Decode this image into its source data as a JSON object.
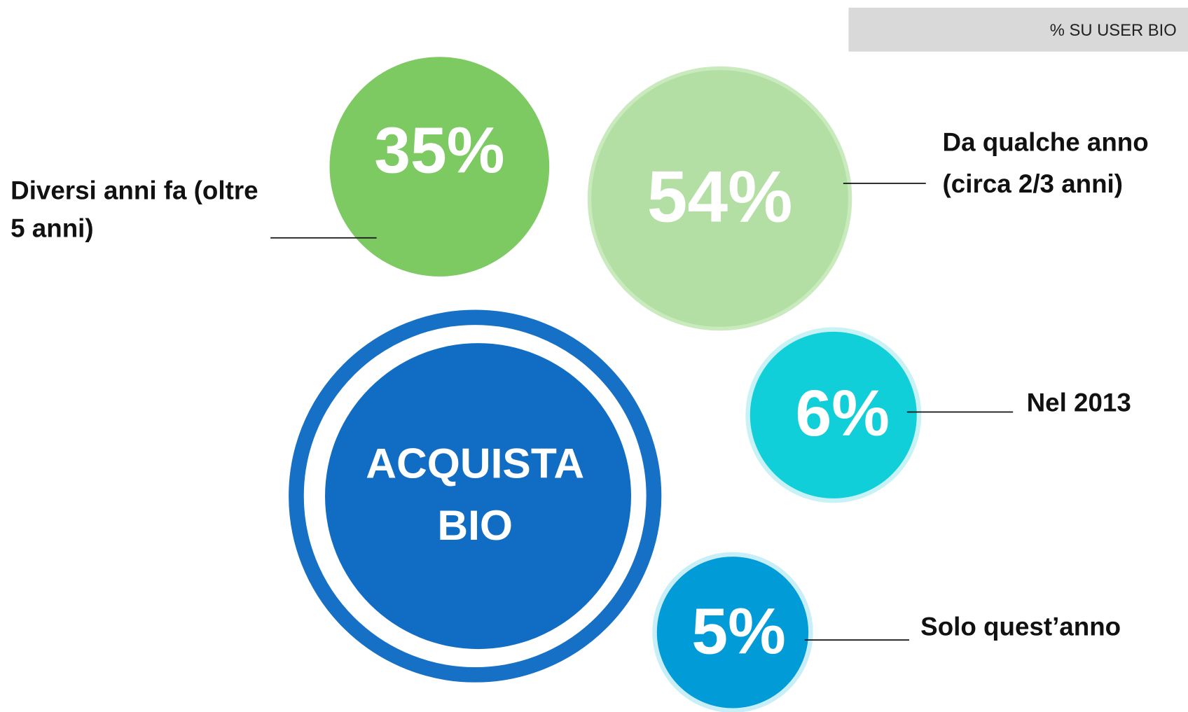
{
  "badge": "% SU USER BIO",
  "center": {
    "lines": [
      "ACQUISTA",
      "BIO"
    ]
  },
  "items": [
    {
      "value": "35%",
      "label": [
        "Diversi anni fa (oltre",
        "5 anni)"
      ]
    },
    {
      "value": "54%",
      "label": [
        "Da qualche anno",
        "(circa 2/3 anni)"
      ]
    },
    {
      "value": "6%",
      "label": [
        "Nel 2013"
      ]
    },
    {
      "value": "5%",
      "label": [
        "Solo quest’anno"
      ]
    }
  ]
}
